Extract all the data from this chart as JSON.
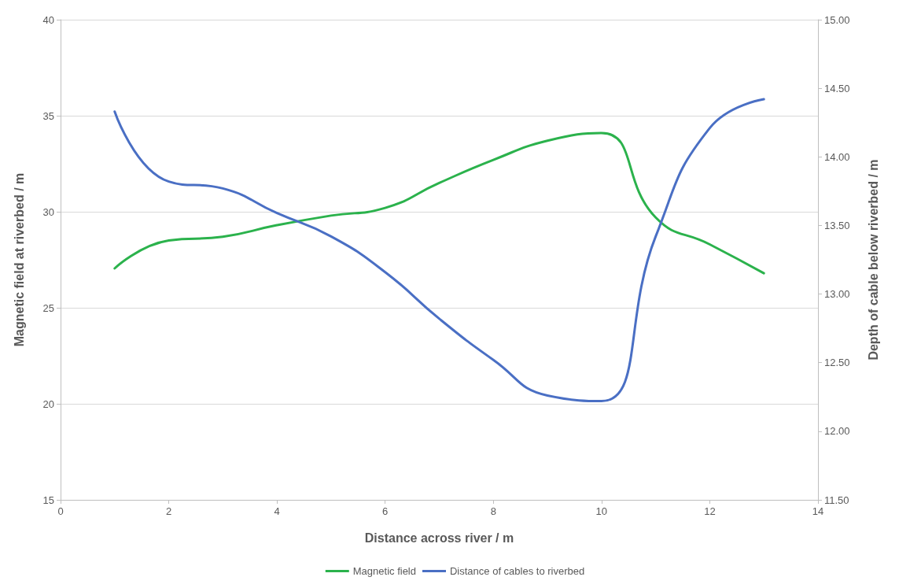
{
  "chart_data": {
    "type": "line",
    "xlabel": "Distance across river / m",
    "ylabel": "Magnetic field at riverbed / m",
    "y2label": "Depth of cable below riverbed / m",
    "x": [
      1,
      2,
      3,
      4,
      5,
      6,
      7,
      8,
      9,
      10,
      11,
      12,
      13
    ],
    "series": [
      {
        "name": "Magnetic field",
        "color": "#2bb24c",
        "values": [
          27.05,
          28.5,
          28.7,
          29.3,
          29.8,
          30.2,
          31.5,
          32.7,
          33.7,
          34.1,
          29.7,
          28.3,
          26.8
        ]
      },
      {
        "name": "Distance of cables to riverbed",
        "color": "#4a6fc4",
        "axis": "y2",
        "values": [
          14.33,
          13.82,
          13.77,
          13.59,
          13.42,
          13.16,
          12.82,
          12.52,
          12.26,
          12.22,
          13.42,
          14.21,
          14.42
        ]
      }
    ],
    "xlim": [
      0,
      14
    ],
    "xticks": [
      0,
      2,
      4,
      6,
      8,
      10,
      12,
      14
    ],
    "ylim": [
      15,
      40
    ],
    "yticks": [
      15,
      20,
      25,
      30,
      35,
      40
    ],
    "y2lim": [
      11.5,
      15
    ],
    "y2ticks": [
      {
        "value": 11.5,
        "label": "11.50"
      },
      {
        "value": 12,
        "label": "12.00"
      },
      {
        "value": 12.5,
        "label": "12.50"
      },
      {
        "value": 13,
        "label": "13.00"
      },
      {
        "value": 13.5,
        "label": "13.50"
      },
      {
        "value": 14,
        "label": "14.00"
      },
      {
        "value": 14.5,
        "label": "14.50"
      },
      {
        "value": 15,
        "label": "15.00"
      }
    ],
    "grid": "y",
    "legend": "bottom",
    "marker": "none",
    "line_style": "solid"
  }
}
